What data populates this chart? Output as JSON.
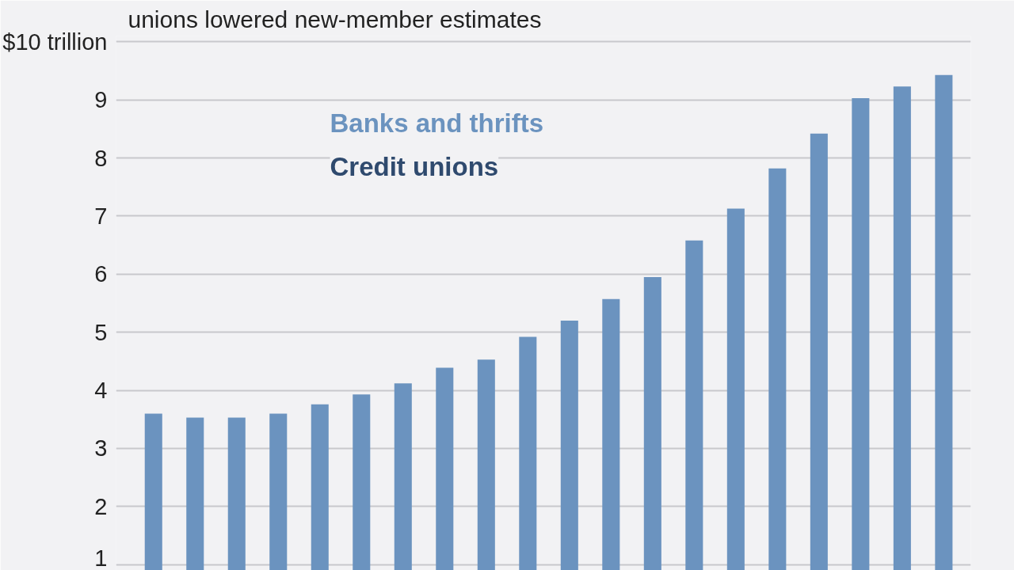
{
  "chart_data": {
    "type": "bar",
    "title": "unions lowered new-member estimates",
    "categories": [
      null,
      null,
      null,
      null,
      null,
      null,
      null,
      null,
      null,
      null,
      null,
      null,
      null,
      null,
      null,
      null,
      null,
      null,
      null,
      null
    ],
    "series": [
      {
        "name": "Banks and thrifts",
        "color": "#6b93bf",
        "values": [
          3.6,
          3.53,
          3.53,
          3.6,
          3.76,
          3.93,
          4.12,
          4.39,
          4.53,
          4.92,
          5.2,
          5.57,
          5.95,
          6.58,
          7.13,
          7.82,
          8.42,
          9.03,
          9.23,
          9.43
        ]
      },
      {
        "name": "Credit unions",
        "color": "#2f4a6e",
        "values": [
          null,
          null,
          null,
          null,
          null,
          null,
          null,
          null,
          null,
          null,
          null,
          null,
          null,
          null,
          null,
          null,
          null,
          null,
          null,
          null
        ]
      }
    ],
    "ylim": [
      0.9,
      10.1
    ],
    "yticks": [
      1,
      2,
      3,
      4,
      5,
      6,
      7,
      8,
      9,
      {
        "value": 10,
        "label": "$10 trillion"
      }
    ],
    "grid": "y",
    "legend": "top left"
  }
}
